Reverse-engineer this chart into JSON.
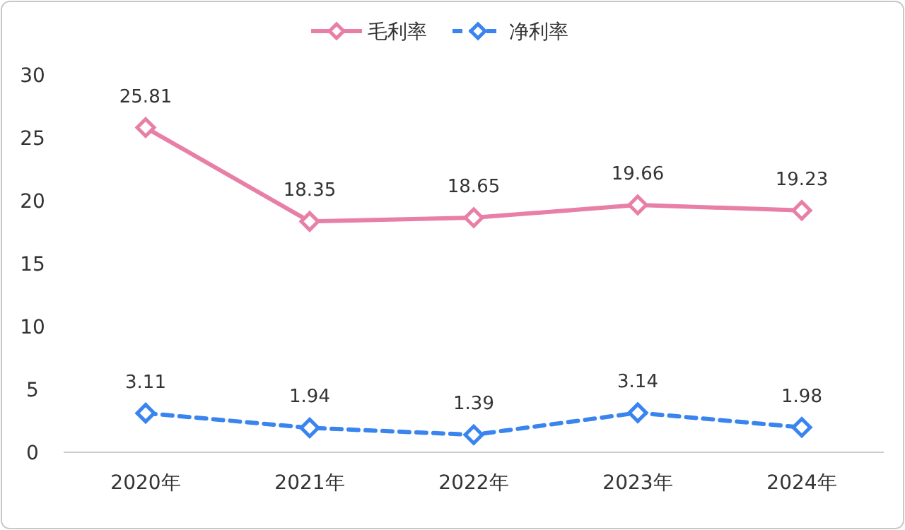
{
  "chart_data": {
    "type": "line",
    "categories": [
      "2020年",
      "2021年",
      "2022年",
      "2023年",
      "2024年"
    ],
    "series": [
      {
        "name": "毛利率",
        "color": "#e87fa6",
        "values": [
          25.81,
          18.35,
          18.65,
          19.66,
          19.23
        ],
        "line_style": "solid"
      },
      {
        "name": "净利率",
        "color": "#3a84f0",
        "values": [
          3.11,
          1.94,
          1.39,
          3.14,
          1.98
        ],
        "line_style": "dashed"
      }
    ],
    "ylim": [
      0,
      30
    ],
    "yticks": [
      0,
      5,
      10,
      15,
      20,
      25,
      30
    ],
    "marker": "diamond",
    "data_labels": true,
    "legend": "top",
    "grid": false
  }
}
